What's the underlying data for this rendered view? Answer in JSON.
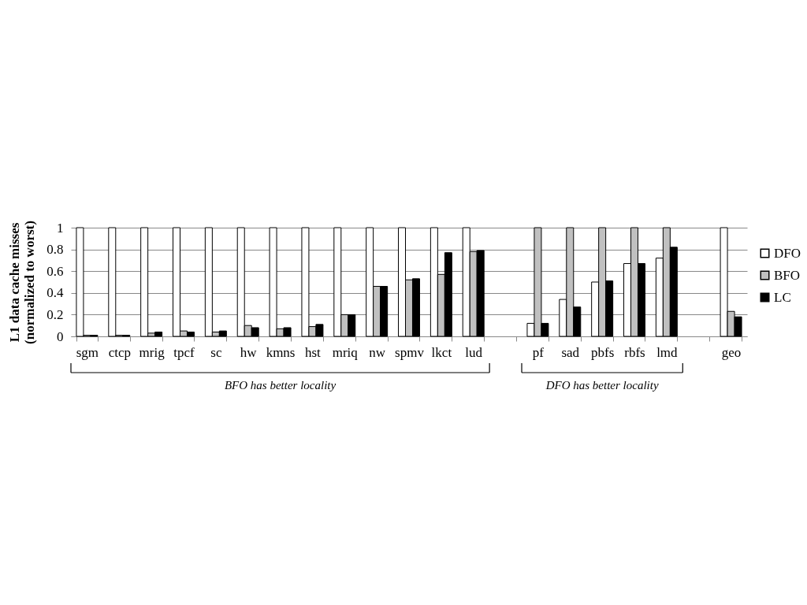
{
  "chart_data": {
    "type": "bar",
    "ylabel": "L1 data cache misses\n(normalized to worst)",
    "categories": [
      "sgm",
      "ctcp",
      "mrig",
      "tpcf",
      "sc",
      "hw",
      "kmns",
      "hst",
      "mriq",
      "nw",
      "spmv",
      "lkct",
      "lud",
      null,
      "pf",
      "sad",
      "pbfs",
      "rbfs",
      "lmd",
      null,
      "geo"
    ],
    "series": [
      {
        "name": "DFO",
        "color": "#ffffff",
        "values": [
          1,
          1,
          1,
          1,
          1,
          1,
          1,
          1,
          1,
          1,
          1,
          1,
          1,
          null,
          0.12,
          0.34,
          0.5,
          0.67,
          0.72,
          null,
          1
        ]
      },
      {
        "name": "BFO",
        "color": "#c0c0c0",
        "values": [
          0.01,
          0.01,
          0.03,
          0.05,
          0.04,
          0.1,
          0.07,
          0.09,
          0.2,
          0.46,
          0.52,
          0.57,
          0.78,
          null,
          1,
          1,
          1,
          1,
          1,
          null,
          0.23
        ]
      },
      {
        "name": "LC",
        "color": "#000000",
        "values": [
          0.01,
          0.01,
          0.04,
          0.04,
          0.05,
          0.08,
          0.08,
          0.11,
          0.2,
          0.46,
          0.53,
          0.77,
          0.79,
          null,
          0.12,
          0.27,
          0.51,
          0.67,
          0.82,
          null,
          0.18
        ]
      }
    ],
    "ylim": [
      0,
      1
    ],
    "yticks": [
      0,
      0.2,
      0.4,
      0.6,
      0.8,
      1
    ],
    "grid": "y",
    "legend": "right",
    "annotations": [
      "BFO has better locality",
      "DFO has better locality"
    ]
  }
}
